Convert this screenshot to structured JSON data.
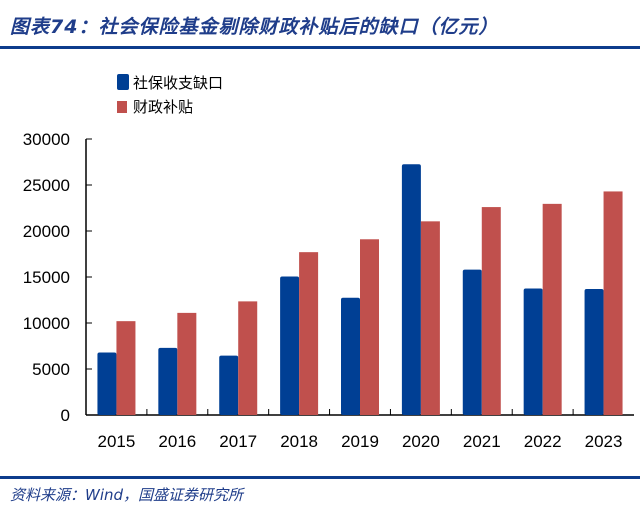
{
  "title": "图表74：社会保险基金剔除财政补贴后的缺口（亿元）",
  "source": "资料来源：Wind，国盛证券研究所",
  "chart_data": {
    "type": "bar",
    "title": "图表74：社会保险基金剔除财政补贴后的缺口（亿元）",
    "categories": [
      "2015",
      "2016",
      "2017",
      "2018",
      "2019",
      "2020",
      "2021",
      "2022",
      "2023"
    ],
    "series": [
      {
        "name": "社保收支缺口",
        "color": "#003f94",
        "values": [
          6800,
          7300,
          6450,
          15050,
          12750,
          27250,
          15800,
          13750,
          13700
        ]
      },
      {
        "name": "财政补贴",
        "color": "#c0504d",
        "values": [
          10200,
          11100,
          12350,
          17700,
          19100,
          21050,
          22600,
          22950,
          24300
        ]
      }
    ],
    "ylim": [
      0,
      30000
    ],
    "yticks": [
      0,
      5000,
      10000,
      15000,
      20000,
      25000,
      30000
    ],
    "grid": false,
    "legend": "top-left"
  }
}
